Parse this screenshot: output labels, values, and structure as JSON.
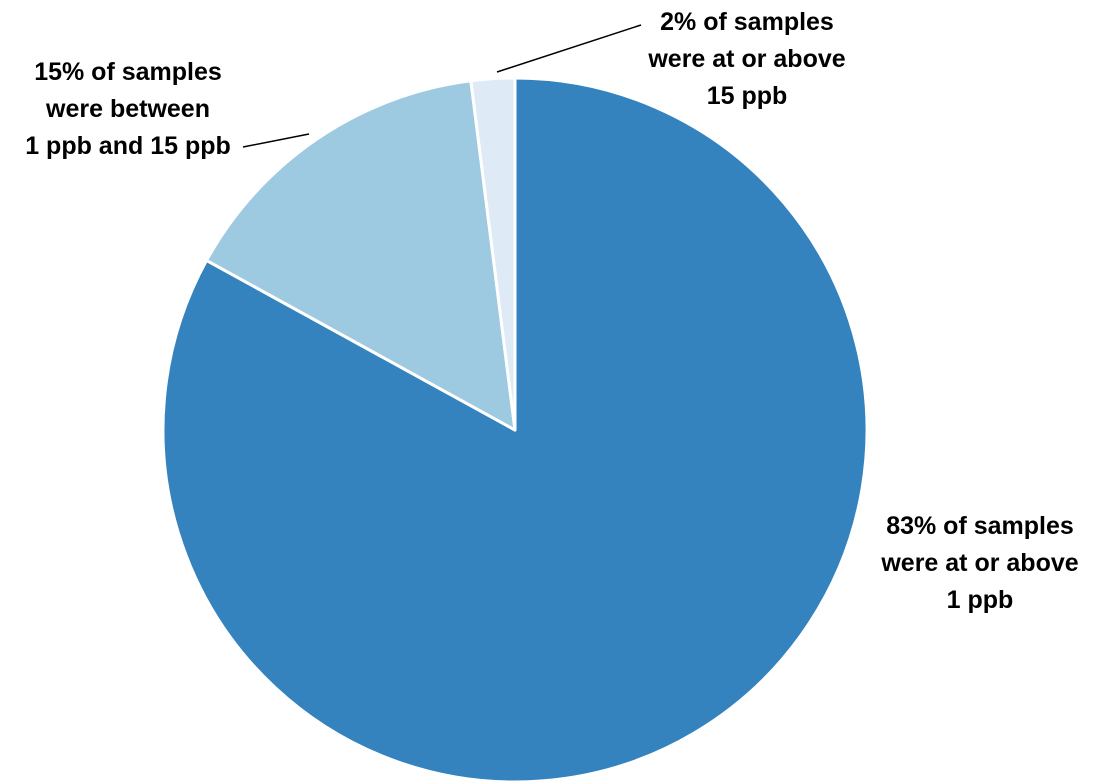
{
  "chart_data": {
    "type": "pie",
    "start_angle_deg": 0,
    "direction": "clockwise",
    "legend": "none",
    "slices": [
      {
        "value": 83,
        "color": "#3483BE",
        "label_lines": [
          "83% of samples",
          "were at or above",
          "1 ppb"
        ]
      },
      {
        "value": 15,
        "color": "#9ECAE1",
        "label_lines": [
          "15% of samples",
          "were between",
          "1 ppb and 15 ppb"
        ]
      },
      {
        "value": 2,
        "color": "#DEEBF7",
        "label_lines": [
          "2% of samples",
          "were at or above",
          "15 ppb"
        ]
      }
    ]
  }
}
